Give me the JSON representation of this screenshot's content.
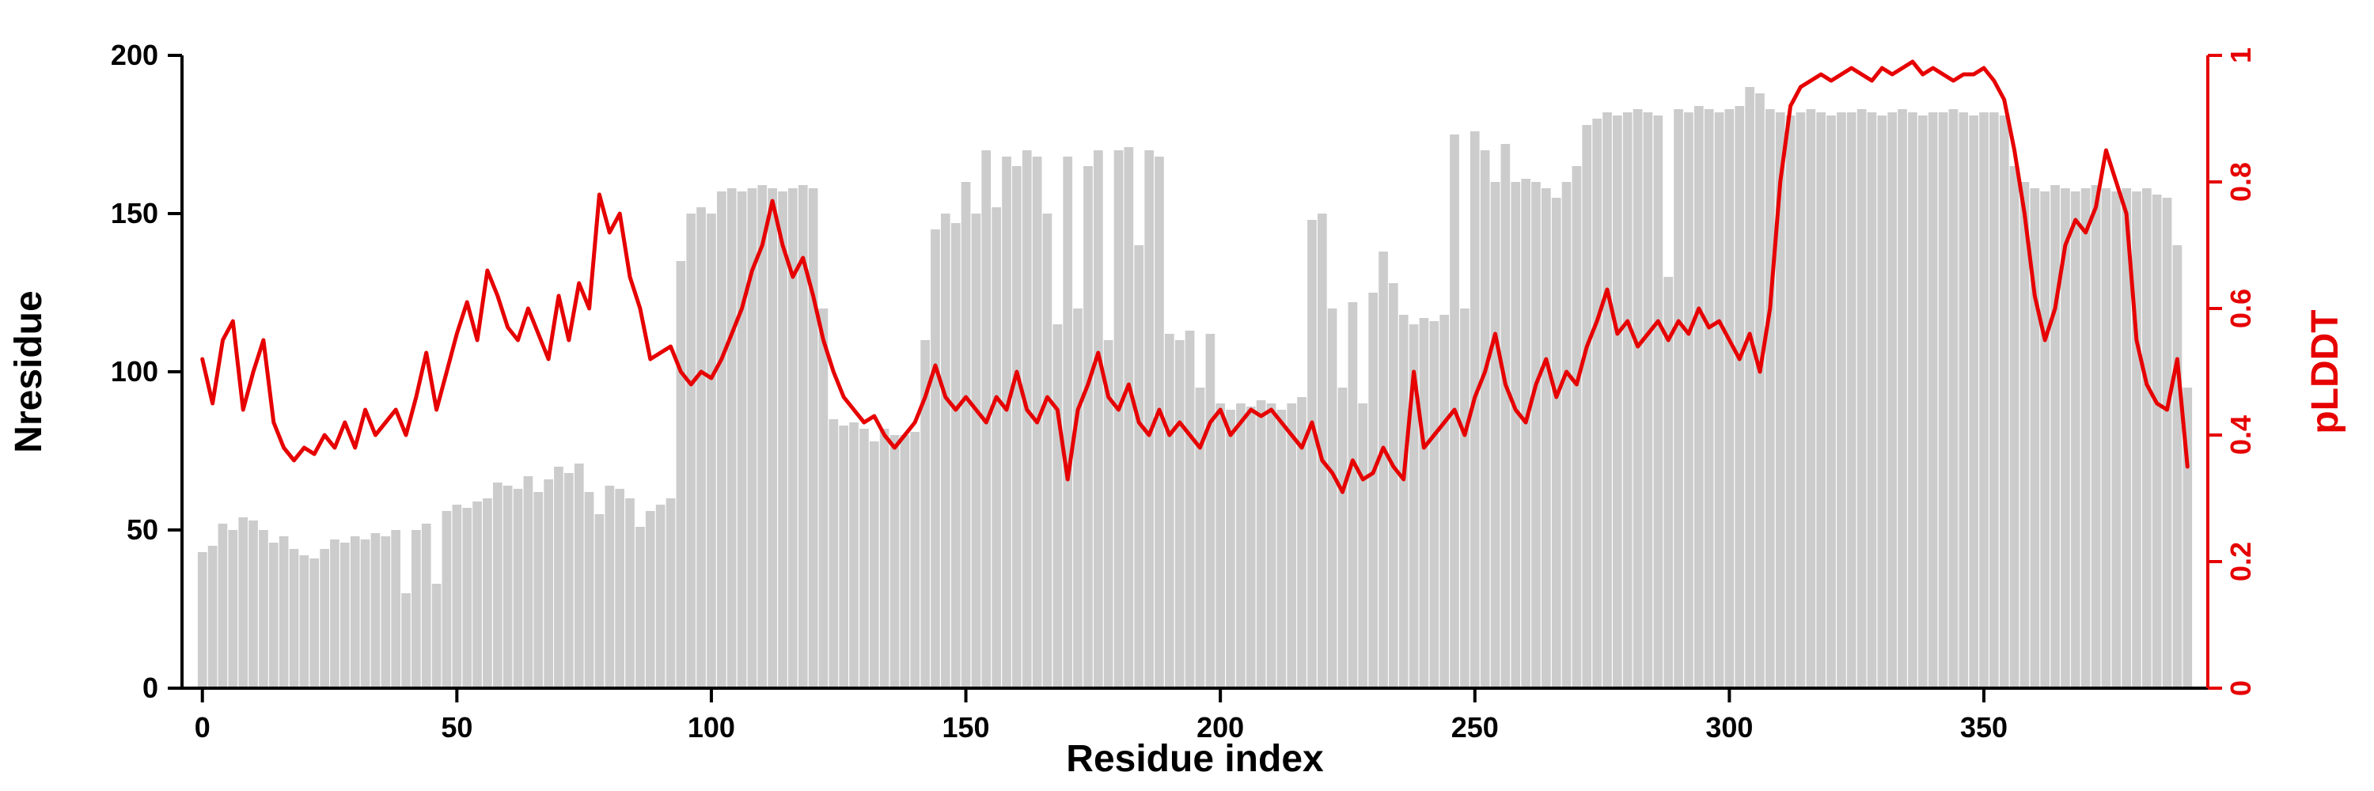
{
  "chart_data": {
    "type": "bar",
    "title": "",
    "xlabel": "Residue index",
    "xlim": [
      -4,
      394
    ],
    "x_ticks": [
      0,
      50,
      100,
      150,
      200,
      250,
      300,
      350
    ],
    "x_start": 0,
    "x_step": 2,
    "grid": false,
    "legend": "none",
    "colors": {
      "bar": "#cccccc",
      "line": "#e60000",
      "axis": "#000000",
      "background": "#ffffff"
    },
    "left_axis": {
      "label": "Nresidue",
      "lim": [
        0,
        200
      ],
      "ticks": [
        0,
        50,
        100,
        150,
        200
      ],
      "color": "#000000"
    },
    "right_axis": {
      "label": "pLDDT",
      "lim": [
        0,
        1
      ],
      "ticks": [
        0,
        0.2,
        0.4,
        0.6,
        0.8,
        1
      ],
      "tick_labels": [
        "0",
        "0.2",
        "0.4",
        "0.6",
        "0.8",
        "1"
      ],
      "color": "#e60000"
    },
    "series": [
      {
        "name": "Nresidue",
        "type": "bar",
        "axis": "left",
        "color": "#cccccc",
        "values": [
          43,
          45,
          52,
          50,
          54,
          53,
          50,
          46,
          48,
          44,
          42,
          41,
          44,
          47,
          46,
          48,
          47,
          49,
          48,
          50,
          30,
          50,
          52,
          33,
          56,
          58,
          57,
          59,
          60,
          65,
          64,
          63,
          67,
          62,
          66,
          70,
          68,
          71,
          62,
          55,
          64,
          63,
          60,
          51,
          56,
          58,
          60,
          135,
          150,
          152,
          150,
          157,
          158,
          157,
          158,
          159,
          158,
          157,
          158,
          159,
          158,
          120,
          85,
          83,
          84,
          82,
          78,
          82,
          80,
          80,
          81,
          110,
          145,
          150,
          147,
          160,
          150,
          170,
          152,
          168,
          165,
          170,
          168,
          150,
          115,
          168,
          120,
          165,
          170,
          110,
          170,
          171,
          140,
          170,
          168,
          112,
          110,
          113,
          95,
          112,
          90,
          88,
          90,
          89,
          91,
          90,
          88,
          90,
          92,
          148,
          150,
          120,
          95,
          122,
          90,
          125,
          138,
          128,
          118,
          115,
          117,
          116,
          118,
          175,
          120,
          176,
          170,
          160,
          172,
          160,
          161,
          160,
          158,
          155,
          160,
          165,
          178,
          180,
          182,
          181,
          182,
          183,
          182,
          181,
          130,
          183,
          182,
          184,
          183,
          182,
          183,
          184,
          190,
          188,
          183,
          182,
          181,
          182,
          183,
          182,
          181,
          182,
          182,
          183,
          182,
          181,
          182,
          183,
          182,
          181,
          182,
          182,
          183,
          182,
          181,
          182,
          182,
          181,
          165,
          160,
          158,
          157,
          159,
          158,
          157,
          158,
          159,
          158,
          157,
          158,
          157,
          158,
          156,
          155,
          140,
          95
        ]
      },
      {
        "name": "pLDDT",
        "type": "line",
        "axis": "right",
        "color": "#e60000",
        "values": [
          0.52,
          0.45,
          0.55,
          0.58,
          0.44,
          0.5,
          0.55,
          0.42,
          0.38,
          0.36,
          0.38,
          0.37,
          0.4,
          0.38,
          0.42,
          0.38,
          0.44,
          0.4,
          0.42,
          0.44,
          0.4,
          0.46,
          0.53,
          0.44,
          0.5,
          0.56,
          0.61,
          0.55,
          0.66,
          0.62,
          0.57,
          0.55,
          0.6,
          0.56,
          0.52,
          0.62,
          0.55,
          0.64,
          0.6,
          0.78,
          0.72,
          0.75,
          0.65,
          0.6,
          0.52,
          0.53,
          0.54,
          0.5,
          0.48,
          0.5,
          0.49,
          0.52,
          0.56,
          0.6,
          0.66,
          0.7,
          0.77,
          0.7,
          0.65,
          0.68,
          0.62,
          0.55,
          0.5,
          0.46,
          0.44,
          0.42,
          0.43,
          0.4,
          0.38,
          0.4,
          0.42,
          0.46,
          0.51,
          0.46,
          0.44,
          0.46,
          0.44,
          0.42,
          0.46,
          0.44,
          0.5,
          0.44,
          0.42,
          0.46,
          0.44,
          0.33,
          0.44,
          0.48,
          0.53,
          0.46,
          0.44,
          0.48,
          0.42,
          0.4,
          0.44,
          0.4,
          0.42,
          0.4,
          0.38,
          0.42,
          0.44,
          0.4,
          0.42,
          0.44,
          0.43,
          0.44,
          0.42,
          0.4,
          0.38,
          0.42,
          0.36,
          0.34,
          0.31,
          0.36,
          0.33,
          0.34,
          0.38,
          0.35,
          0.33,
          0.5,
          0.38,
          0.4,
          0.42,
          0.44,
          0.4,
          0.46,
          0.5,
          0.56,
          0.48,
          0.44,
          0.42,
          0.48,
          0.52,
          0.46,
          0.5,
          0.48,
          0.54,
          0.58,
          0.63,
          0.56,
          0.58,
          0.54,
          0.56,
          0.58,
          0.55,
          0.58,
          0.56,
          0.6,
          0.57,
          0.58,
          0.55,
          0.52,
          0.56,
          0.5,
          0.6,
          0.8,
          0.92,
          0.95,
          0.96,
          0.97,
          0.96,
          0.97,
          0.98,
          0.97,
          0.96,
          0.98,
          0.97,
          0.98,
          0.99,
          0.97,
          0.98,
          0.97,
          0.96,
          0.97,
          0.97,
          0.98,
          0.96,
          0.93,
          0.85,
          0.75,
          0.62,
          0.55,
          0.6,
          0.7,
          0.74,
          0.72,
          0.76,
          0.85,
          0.8,
          0.75,
          0.55,
          0.48,
          0.45,
          0.44,
          0.52,
          0.35
        ]
      }
    ]
  }
}
